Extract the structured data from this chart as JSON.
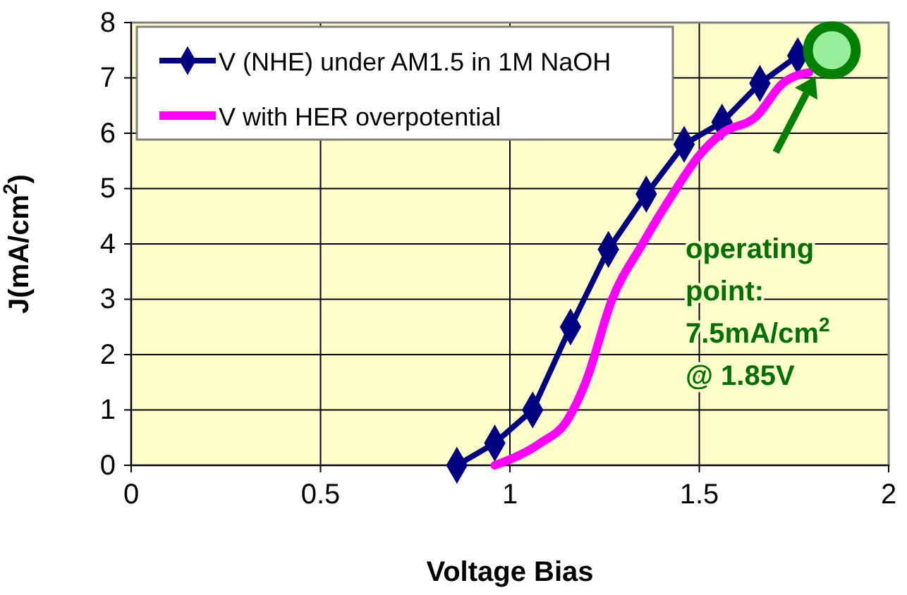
{
  "chart_data": {
    "type": "line",
    "xlabel": "Voltage Bias",
    "ylabel": "J(mA/cm$^{2}$)",
    "xlim": [
      0,
      2
    ],
    "xticks": [
      0,
      {
        "value": 0.5,
        "label": "0.5"
      },
      1,
      {
        "value": 1.5,
        "label": "1.5"
      },
      2
    ],
    "ylim": [
      0,
      8
    ],
    "yticks": [
      0,
      1,
      2,
      3,
      4,
      5,
      6,
      7,
      8
    ],
    "grid": true,
    "legend": "top left",
    "series": [
      {
        "name": "V (NHE) under AM1.5  in 1M NaOH",
        "color": "#000080",
        "marker": "diamond",
        "x": [
          0.86,
          0.96,
          1.06,
          1.16,
          1.26,
          1.36,
          1.46,
          1.56,
          1.66,
          1.76
        ],
        "values": [
          0,
          0.4,
          1.0,
          2.5,
          3.9,
          4.9,
          5.8,
          6.2,
          6.9,
          7.4
        ]
      },
      {
        "name": "V with HER overpotential",
        "color": "#ff00ff",
        "marker": "none",
        "x": [
          0.96,
          1.08,
          1.15,
          1.2,
          1.27,
          1.35,
          1.43,
          1.5,
          1.56,
          1.65,
          1.72,
          1.79
        ],
        "values": [
          0,
          0.4,
          0.8,
          1.5,
          3.0,
          4.0,
          4.9,
          5.6,
          6.0,
          6.3,
          6.9,
          7.1
        ]
      },
      {
        "type": "scatter",
        "color": "#008000",
        "marker": "circle",
        "x": [
          1.85
        ],
        "values": [
          7.5
        ]
      }
    ],
    "annotations": [
      "operating point: 7.5mA/cm$^{2}$ @ 1.85V"
    ]
  }
}
